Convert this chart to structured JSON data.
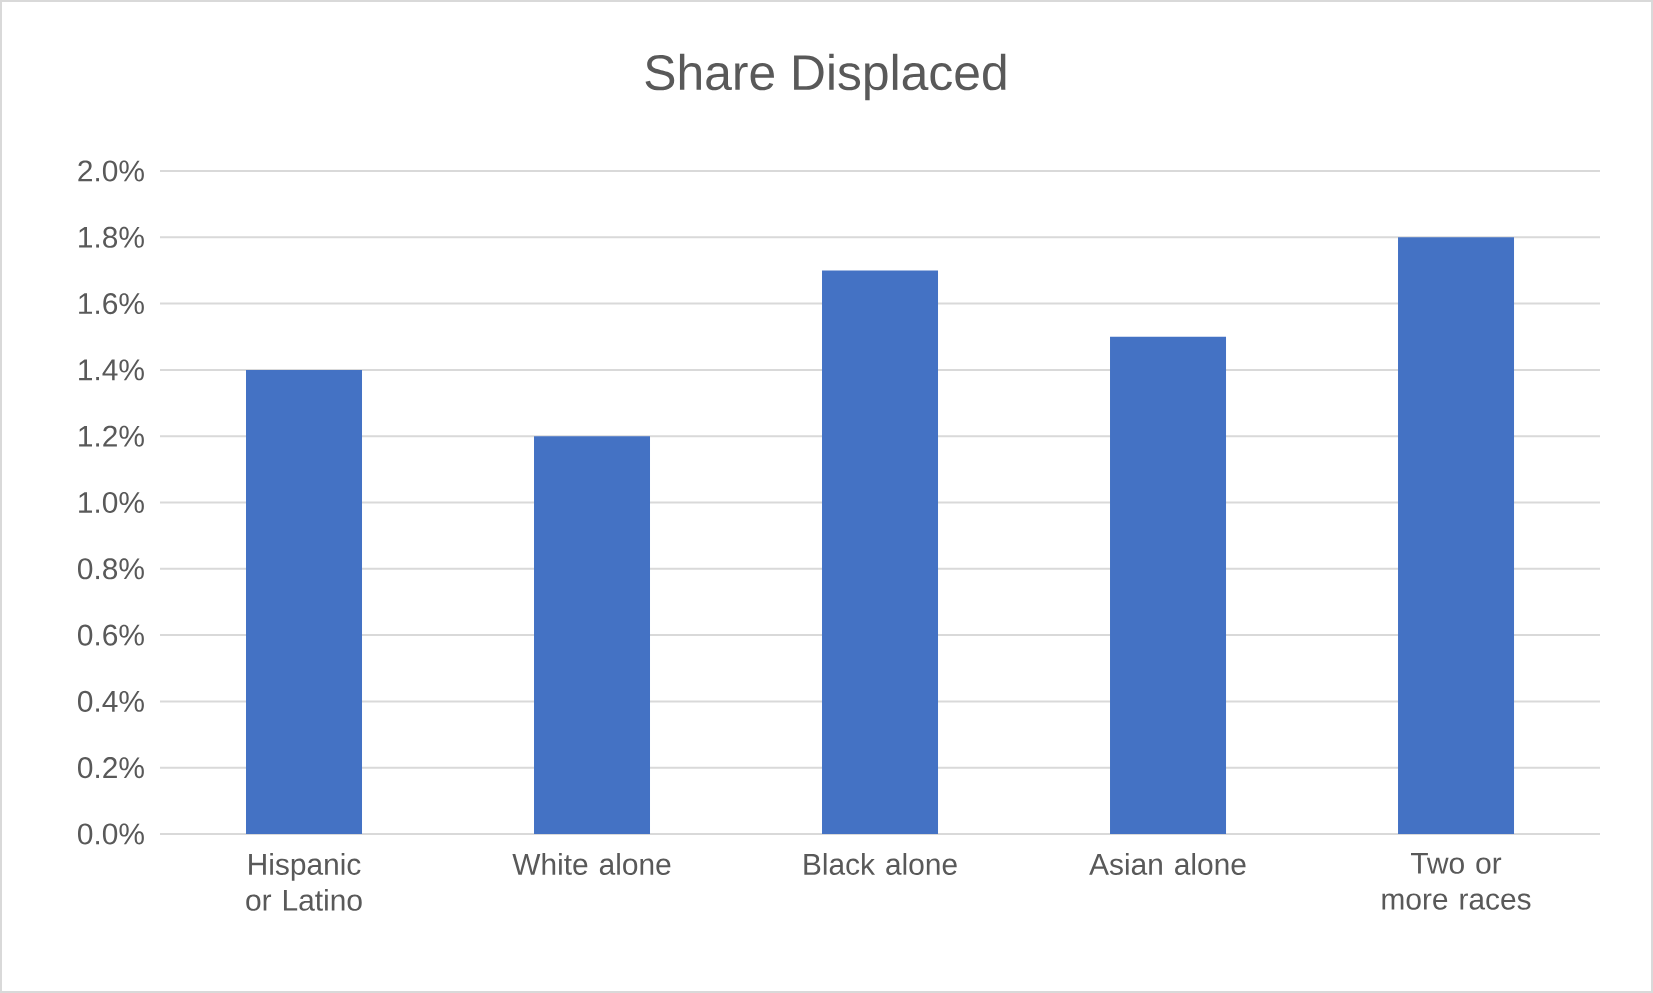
{
  "chart_data": {
    "type": "bar",
    "title": "Share Displaced",
    "categories": [
      "Hispanic or Latino",
      "White alone",
      "Black alone",
      "Asian alone",
      "Two or more races"
    ],
    "values": [
      1.4,
      1.2,
      1.7,
      1.5,
      1.8
    ],
    "color": "#4472c4",
    "ylim": [
      0,
      2.0
    ],
    "yticks": [
      {
        "value": 0,
        "label": "0.0%"
      },
      {
        "value": 0.2,
        "label": "0.2%"
      },
      {
        "value": 0.4,
        "label": "0.4%"
      },
      {
        "value": 0.6,
        "label": "0.6%"
      },
      {
        "value": 0.8,
        "label": "0.8%"
      },
      {
        "value": 1.0,
        "label": "1.0%"
      },
      {
        "value": 1.2,
        "label": "1.2%"
      },
      {
        "value": 1.4,
        "label": "1.4%"
      },
      {
        "value": 1.6,
        "label": "1.6%"
      },
      {
        "value": 1.8,
        "label": "1.8%"
      },
      {
        "value": 2.0,
        "label": "2.0%"
      }
    ],
    "grid": "y"
  }
}
